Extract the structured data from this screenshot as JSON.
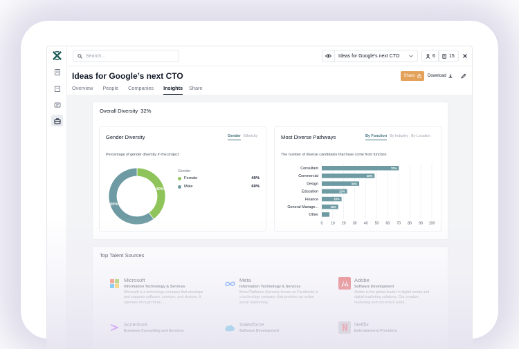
{
  "app": {
    "title": "Ideas for Google’s next CTO"
  },
  "topbar": {
    "search_placeholder": "Search...",
    "project_select": "Ideas for Google’s next CTO",
    "people_count": "6",
    "docs_count": "15"
  },
  "header": {
    "title": "Ideas for Google’s next CTO",
    "share_label": "Share",
    "download_label": "Download"
  },
  "tabs": [
    {
      "label": "Overview",
      "active": false
    },
    {
      "label": "People",
      "active": false
    },
    {
      "label": "Companies",
      "active": false
    },
    {
      "label": "Insights",
      "active": true
    },
    {
      "label": "Share",
      "active": false
    }
  ],
  "overall": {
    "title": "Overall Diversity",
    "value": "32%"
  },
  "gender": {
    "title": "Gender Diversity",
    "toggles": [
      "Gender",
      "Ethnicity"
    ],
    "description": "Percentage of gender diversity in the project",
    "legend_title": "Gender",
    "legend": [
      {
        "label": "Female",
        "value": "40%",
        "color": "#8fc45a"
      },
      {
        "label": "Male",
        "value": "60%",
        "color": "#6e9ba3"
      }
    ]
  },
  "pathways": {
    "title": "Most Diverse Pathways",
    "toggles": [
      "By Function",
      "By Industry",
      "By Location"
    ],
    "description": "The number of diverse candidates that have come from function"
  },
  "chart_data": [
    {
      "type": "pie",
      "title": "Gender Diversity",
      "categories": [
        "Female",
        "Male"
      ],
      "values": [
        40,
        60
      ],
      "labels": [
        "40%",
        "60%"
      ],
      "colors": [
        "#8fc45a",
        "#6e9ba3"
      ]
    },
    {
      "type": "bar",
      "orientation": "horizontal",
      "title": "Most Diverse Pathways",
      "categories": [
        "Consultant",
        "Commercial",
        "Design",
        "Education",
        "Finance",
        "General Manage...",
        "Other"
      ],
      "values": [
        70,
        48,
        34,
        23,
        18,
        15,
        7
      ],
      "labels": [
        "70%",
        "48%",
        "34%",
        "23%",
        "18%",
        "15%",
        ""
      ],
      "xlim": [
        0,
        100
      ],
      "xticks": [
        "0",
        "10",
        "20",
        "30",
        "40",
        "50",
        "60",
        "70",
        "80",
        "90",
        "100"
      ],
      "grid": true,
      "color": "#6e9ba3"
    }
  ],
  "talent": {
    "title": "Top Talent Sources",
    "companies": [
      {
        "name": "Microsoft",
        "industry": "Information Technology & Services",
        "desc": "Microsoft is a technology company that develops and supports software, services, and devices. It operates through three...",
        "logo": "microsoft-logo"
      },
      {
        "name": "Meta",
        "industry": "Information Technology & Services",
        "desc": "Meta Platforms (formerly known as Facebook) is a technology company that provides an online social networking...",
        "logo": "meta-logo"
      },
      {
        "name": "Adobe",
        "industry": "Software Development",
        "desc": "Adobe is the global leader in digital media and digital marketing solutions. Our creative, marketing and document soluti...",
        "logo": "adobe-logo"
      },
      {
        "name": "Accenture",
        "industry": "Business Consulting and Services",
        "desc": "",
        "logo": "accenture-logo"
      },
      {
        "name": "Salesforce",
        "industry": "Software Development",
        "desc": "",
        "logo": "salesforce-logo"
      },
      {
        "name": "Netflix",
        "industry": "Entertainment Providers",
        "desc": "",
        "logo": "netflix-logo"
      }
    ]
  }
}
